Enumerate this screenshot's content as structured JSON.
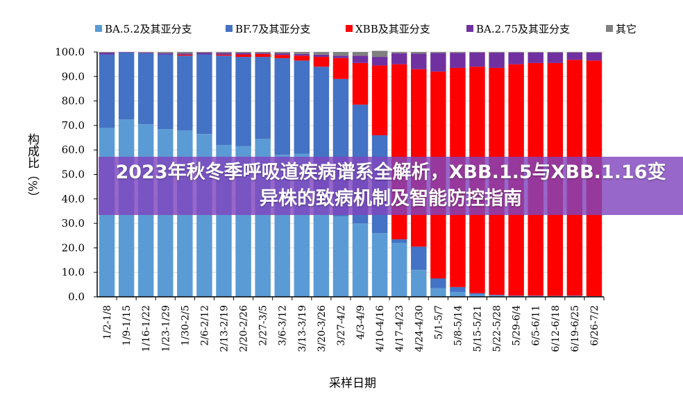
{
  "banner_title": "2023年秋冬季呼吸道疾病谱系全解析，XBB.1.5与XBB.1.16变异株的致病机制及智能防控指南",
  "chart_data": {
    "type": "bar",
    "stacked": true,
    "xlabel": "采样日期",
    "ylabel": "构成比（%）",
    "ylim": [
      0,
      100
    ],
    "yticks": [
      "0.0",
      "10.0",
      "20.0",
      "30.0",
      "40.0",
      "50.0",
      "60.0",
      "70.0",
      "80.0",
      "90.0",
      "100.0"
    ],
    "grid": true,
    "legend_position": "top",
    "categories": [
      "1/2-1/8",
      "1/9-1/15",
      "1/16-1/22",
      "1/23-1/29",
      "1/30-2/5",
      "2/6-2/12",
      "2/13-2/19",
      "2/20-2/26",
      "2/27-3/5",
      "3/6-3/12",
      "3/13-3/19",
      "3/20-3/26",
      "3/27-4/2",
      "4/3-4/9",
      "4/10-4/16",
      "4/17-4/23",
      "4/24-4/30",
      "5/1-5/7",
      "5/8-5/14",
      "5/15-5/21",
      "5/22-5/28",
      "5/29-6/4",
      "6/5-6/11",
      "6/12-6/18",
      "6/19-6/25",
      "6/26-7/2"
    ],
    "series": [
      {
        "name": "BA.5.2及其亚分支",
        "color": "#5b9bd5",
        "values": [
          69,
          72.5,
          70.5,
          68.5,
          68,
          66.5,
          62,
          61.5,
          64.5,
          58,
          58.5,
          38,
          33,
          30,
          26,
          22,
          11,
          3.5,
          2,
          1,
          0.5,
          0.3,
          0.3,
          0.3,
          0.3,
          0.2
        ]
      },
      {
        "name": "BF.7及其亚分支",
        "color": "#4472c4",
        "values": [
          30,
          27.3,
          29,
          30.5,
          30.5,
          32.5,
          36.5,
          36.5,
          33.5,
          39.5,
          38,
          56,
          56,
          48.5,
          40,
          1.5,
          9.5,
          4,
          2,
          0.5,
          0.3,
          0.2,
          0.2,
          0.1,
          0.2,
          0.1
        ]
      },
      {
        "name": "XBB及其亚分支",
        "color": "#ff0000",
        "values": [
          0,
          0,
          0,
          0,
          0.4,
          0,
          0.4,
          1,
          1.2,
          1.3,
          2,
          4,
          8.5,
          17,
          28.5,
          71.5,
          72.5,
          84.5,
          89.5,
          92.5,
          92.7,
          94.5,
          95,
          95.1,
          96.3,
          96.2
        ]
      },
      {
        "name": "BA.2.75及其亚分支",
        "color": "#7030a0",
        "values": [
          0.7,
          0.2,
          0.3,
          0.5,
          0.5,
          0.7,
          0.7,
          0.6,
          0.4,
          0.7,
          0.7,
          0.9,
          1,
          3,
          3.5,
          4.5,
          6.3,
          7.6,
          6.1,
          5.8,
          6.2,
          4.8,
          4.3,
          4.3,
          3,
          3.3
        ]
      },
      {
        "name": "其它",
        "color": "#808080",
        "values": [
          0.3,
          0,
          0.2,
          0.5,
          0.6,
          0.3,
          0.4,
          0.4,
          0.4,
          0.5,
          0.8,
          1.1,
          1.5,
          1.5,
          2.5,
          0.5,
          0.7,
          0.4,
          0.4,
          0.2,
          0.3,
          0.2,
          0.2,
          0.2,
          0.2,
          0.2
        ]
      }
    ]
  }
}
